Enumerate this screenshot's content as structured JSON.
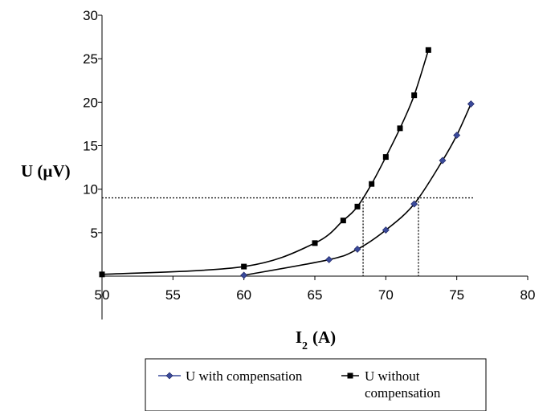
{
  "chart_data": {
    "type": "scatter",
    "title": "",
    "xlabel": "I",
    "xlabel_sub": "2",
    "xlabel_unit": "(A)",
    "ylabel": "U (µV)",
    "xlim": [
      50,
      80
    ],
    "ylim": [
      0,
      30
    ],
    "xticks": [
      "50",
      "55",
      "60",
      "65",
      "70",
      "75",
      "80"
    ],
    "yticks": [
      "5",
      "10",
      "15",
      "20",
      "25",
      "30"
    ],
    "grid": false,
    "legend_position": "bottom",
    "series": [
      {
        "name": "U with compensation",
        "color": "#3a4a9a",
        "marker": "diamond",
        "x": [
          60,
          66,
          68,
          70,
          72,
          74,
          75,
          76
        ],
        "y": [
          0.1,
          1.9,
          3.1,
          5.3,
          8.3,
          13.3,
          16.2,
          19.8
        ]
      },
      {
        "name": "U without compensation",
        "color": "#000000",
        "marker": "square",
        "x": [
          50,
          60,
          65,
          67,
          68,
          69,
          70,
          71,
          72,
          73
        ],
        "y": [
          0.2,
          1.1,
          3.8,
          6.4,
          8.0,
          10.6,
          13.7,
          17.0,
          20.8,
          26.0
        ]
      }
    ],
    "reference_lines": {
      "horizontal_y": 9,
      "horizontal_x_end": 76.2,
      "vertical_x": [
        68.4,
        72.3
      ]
    }
  }
}
